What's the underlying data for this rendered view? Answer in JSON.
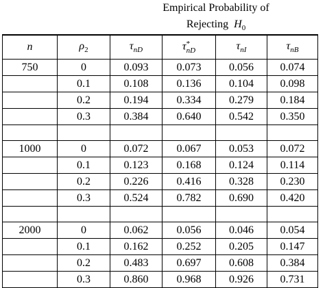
{
  "caption": {
    "line1": "Empirical Probability of",
    "line2": {
      "text": "Rejecting",
      "symbol": "H",
      "sub": "0"
    }
  },
  "table": {
    "columns": [
      {
        "symbol": "n"
      },
      {
        "symbol": "ρ",
        "sub": "2"
      },
      {
        "symbol": "τ",
        "sub": "nD"
      },
      {
        "symbol": "τ",
        "sup": "*",
        "sub": "nD"
      },
      {
        "symbol": "τ",
        "sub": "nI"
      },
      {
        "symbol": "τ",
        "sub": "nB"
      }
    ],
    "groups": [
      {
        "n": "750",
        "rows": [
          [
            "0",
            "0.093",
            "0.073",
            "0.056",
            "0.074"
          ],
          [
            "0.1",
            "0.108",
            "0.136",
            "0.104",
            "0.098"
          ],
          [
            "0.2",
            "0.194",
            "0.334",
            "0.279",
            "0.184"
          ],
          [
            "0.3",
            "0.384",
            "0.640",
            "0.542",
            "0.350"
          ]
        ]
      },
      {
        "n": "1000",
        "rows": [
          [
            "0",
            "0.072",
            "0.067",
            "0.053",
            "0.072"
          ],
          [
            "0.1",
            "0.123",
            "0.168",
            "0.124",
            "0.114"
          ],
          [
            "0.2",
            "0.226",
            "0.416",
            "0.328",
            "0.230"
          ],
          [
            "0.3",
            "0.524",
            "0.782",
            "0.690",
            "0.420"
          ]
        ]
      },
      {
        "n": "2000",
        "rows": [
          [
            "0",
            "0.062",
            "0.056",
            "0.046",
            "0.054"
          ],
          [
            "0.1",
            "0.162",
            "0.252",
            "0.205",
            "0.147"
          ],
          [
            "0.2",
            "0.483",
            "0.697",
            "0.608",
            "0.384"
          ],
          [
            "0.3",
            "0.860",
            "0.968",
            "0.926",
            "0.731"
          ]
        ]
      }
    ]
  }
}
